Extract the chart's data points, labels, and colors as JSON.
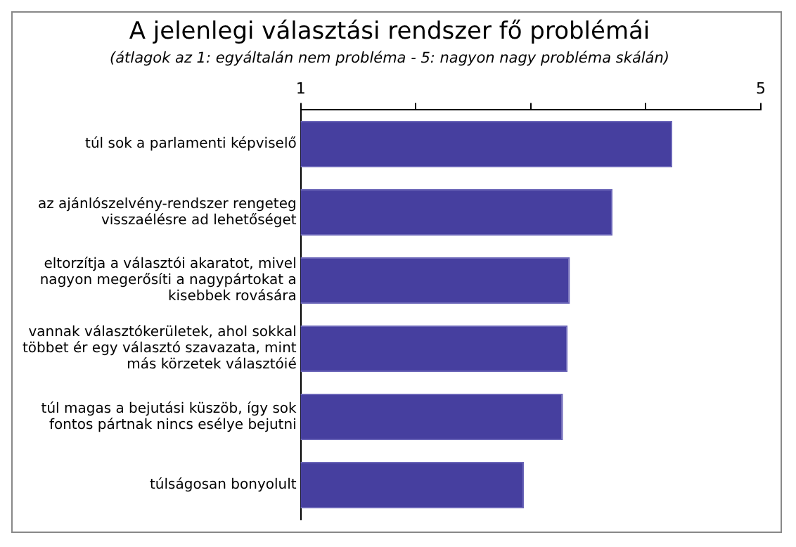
{
  "chart_data": {
    "type": "bar",
    "orientation": "horizontal",
    "title": "A jelenlegi választási rendszer fő problémái",
    "subtitle": "(átlagok az 1: egyáltalán nem probléma - 5: nagyon nagy probléma skálán)",
    "categories": [
      "túl sok a parlamenti képviselő",
      "az ajánlószelvény-rendszer rengeteg visszaélésre ad lehetőséget",
      "eltorzítja a választói akaratot, mivel nagyon megerősíti a nagypártokat a kisebbek rovására",
      "vannak választókerületek, ahol sokkal többet ér egy választó szavazata, mint más körzetek választóié",
      "túl magas a bejutási küszöb, így sok fontos pártnak nincs esélye bejutni",
      "túlságosan bonyolult"
    ],
    "values": [
      4.23,
      3.71,
      3.34,
      3.32,
      3.28,
      2.94
    ],
    "color": "#463f9f",
    "xlim": [
      1,
      5
    ],
    "xticks": [
      1,
      {
        "value": 2,
        "label": null
      },
      {
        "value": 3,
        "label": null
      },
      {
        "value": 4,
        "label": null
      },
      5
    ],
    "grid": false,
    "legend": false
  }
}
